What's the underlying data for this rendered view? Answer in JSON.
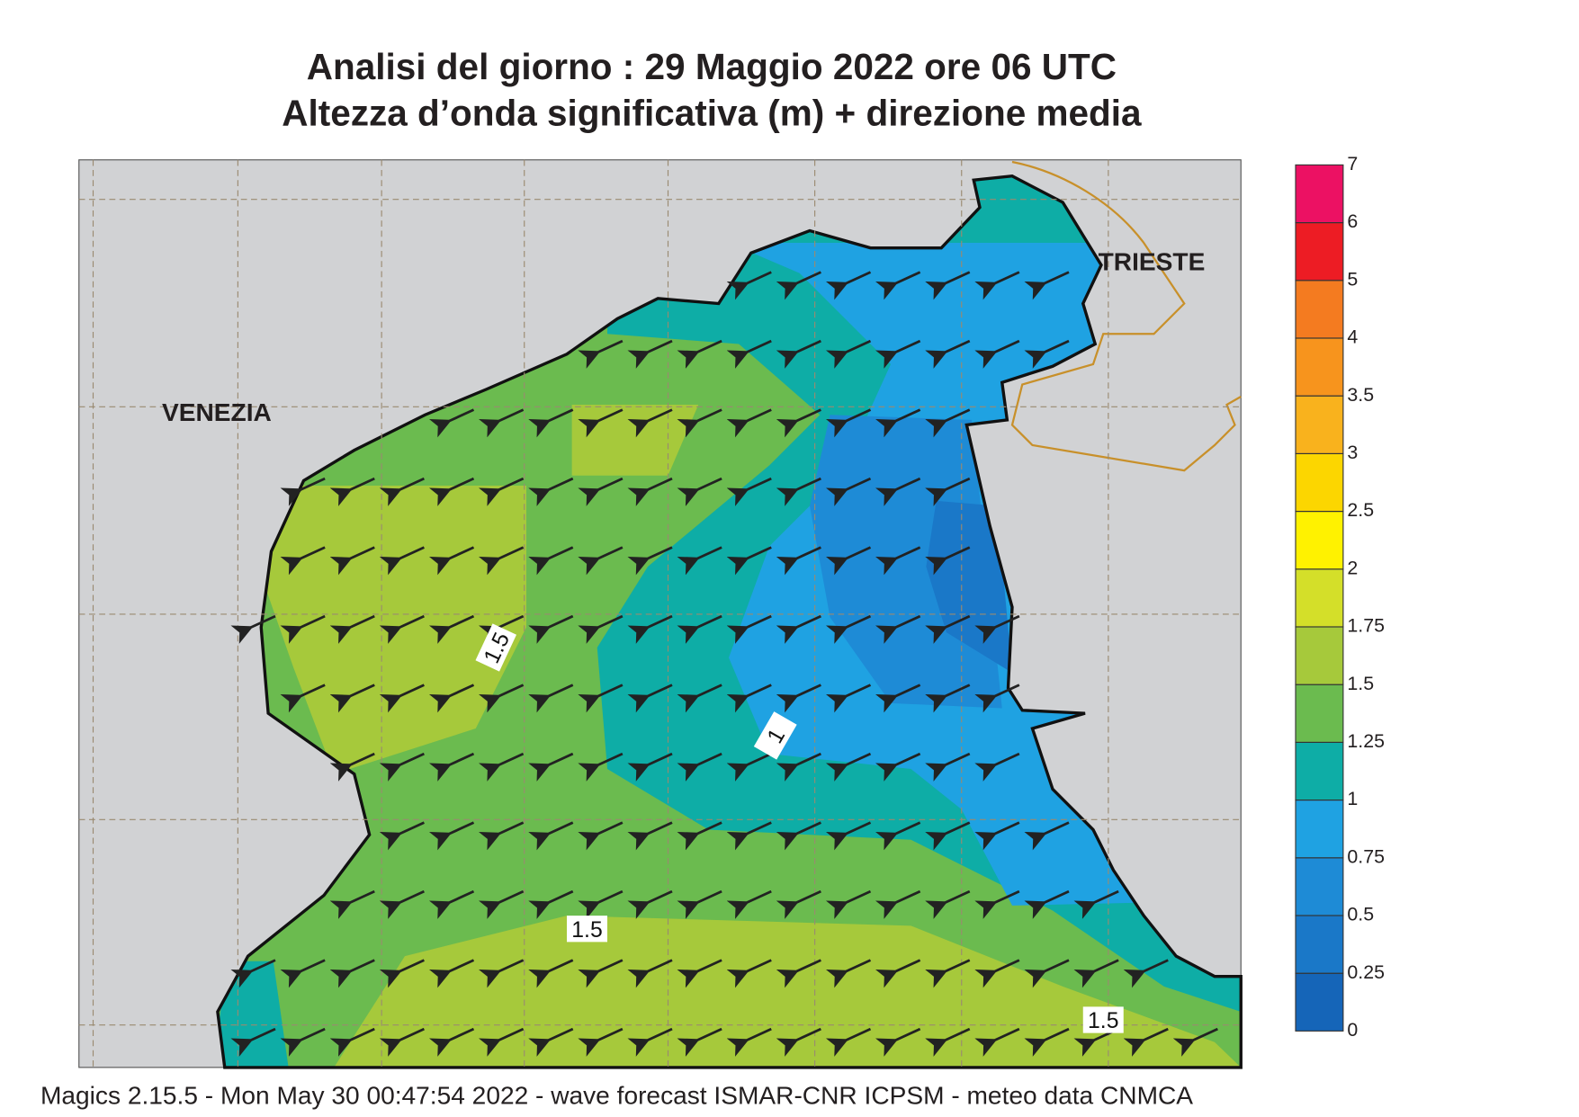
{
  "header": {
    "title_line1": "Analisi del giorno :  29   Maggio  2022   ore 06 UTC",
    "title_line2": "Altezza d’onda significativa (m) + direzione media"
  },
  "map": {
    "places": [
      "VENEZIA",
      "TRIESTE"
    ],
    "contour_labels": [
      1.5,
      1,
      1.5,
      1.5
    ]
  },
  "colorbar": {
    "ticks": [
      0,
      0.25,
      0.5,
      0.75,
      1,
      1.25,
      1.5,
      1.75,
      2,
      2.5,
      3,
      3.5,
      4,
      5,
      6,
      7
    ],
    "colors": [
      "#1565b8",
      "#1a78c8",
      "#1e8bd6",
      "#1fa2e2",
      "#0eada6",
      "#6bbb4f",
      "#a6c93b",
      "#d4df29",
      "#fff200",
      "#fcd600",
      "#f9b21d",
      "#f7941d",
      "#f47b20",
      "#ed1c24",
      "#ec1163"
    ]
  },
  "footer": "Magics 2.15.5 - Mon May 30 00:47:54 2022 - wave forecast  ISMAR-CNR  ICPSM - meteo data   CNMCA"
}
